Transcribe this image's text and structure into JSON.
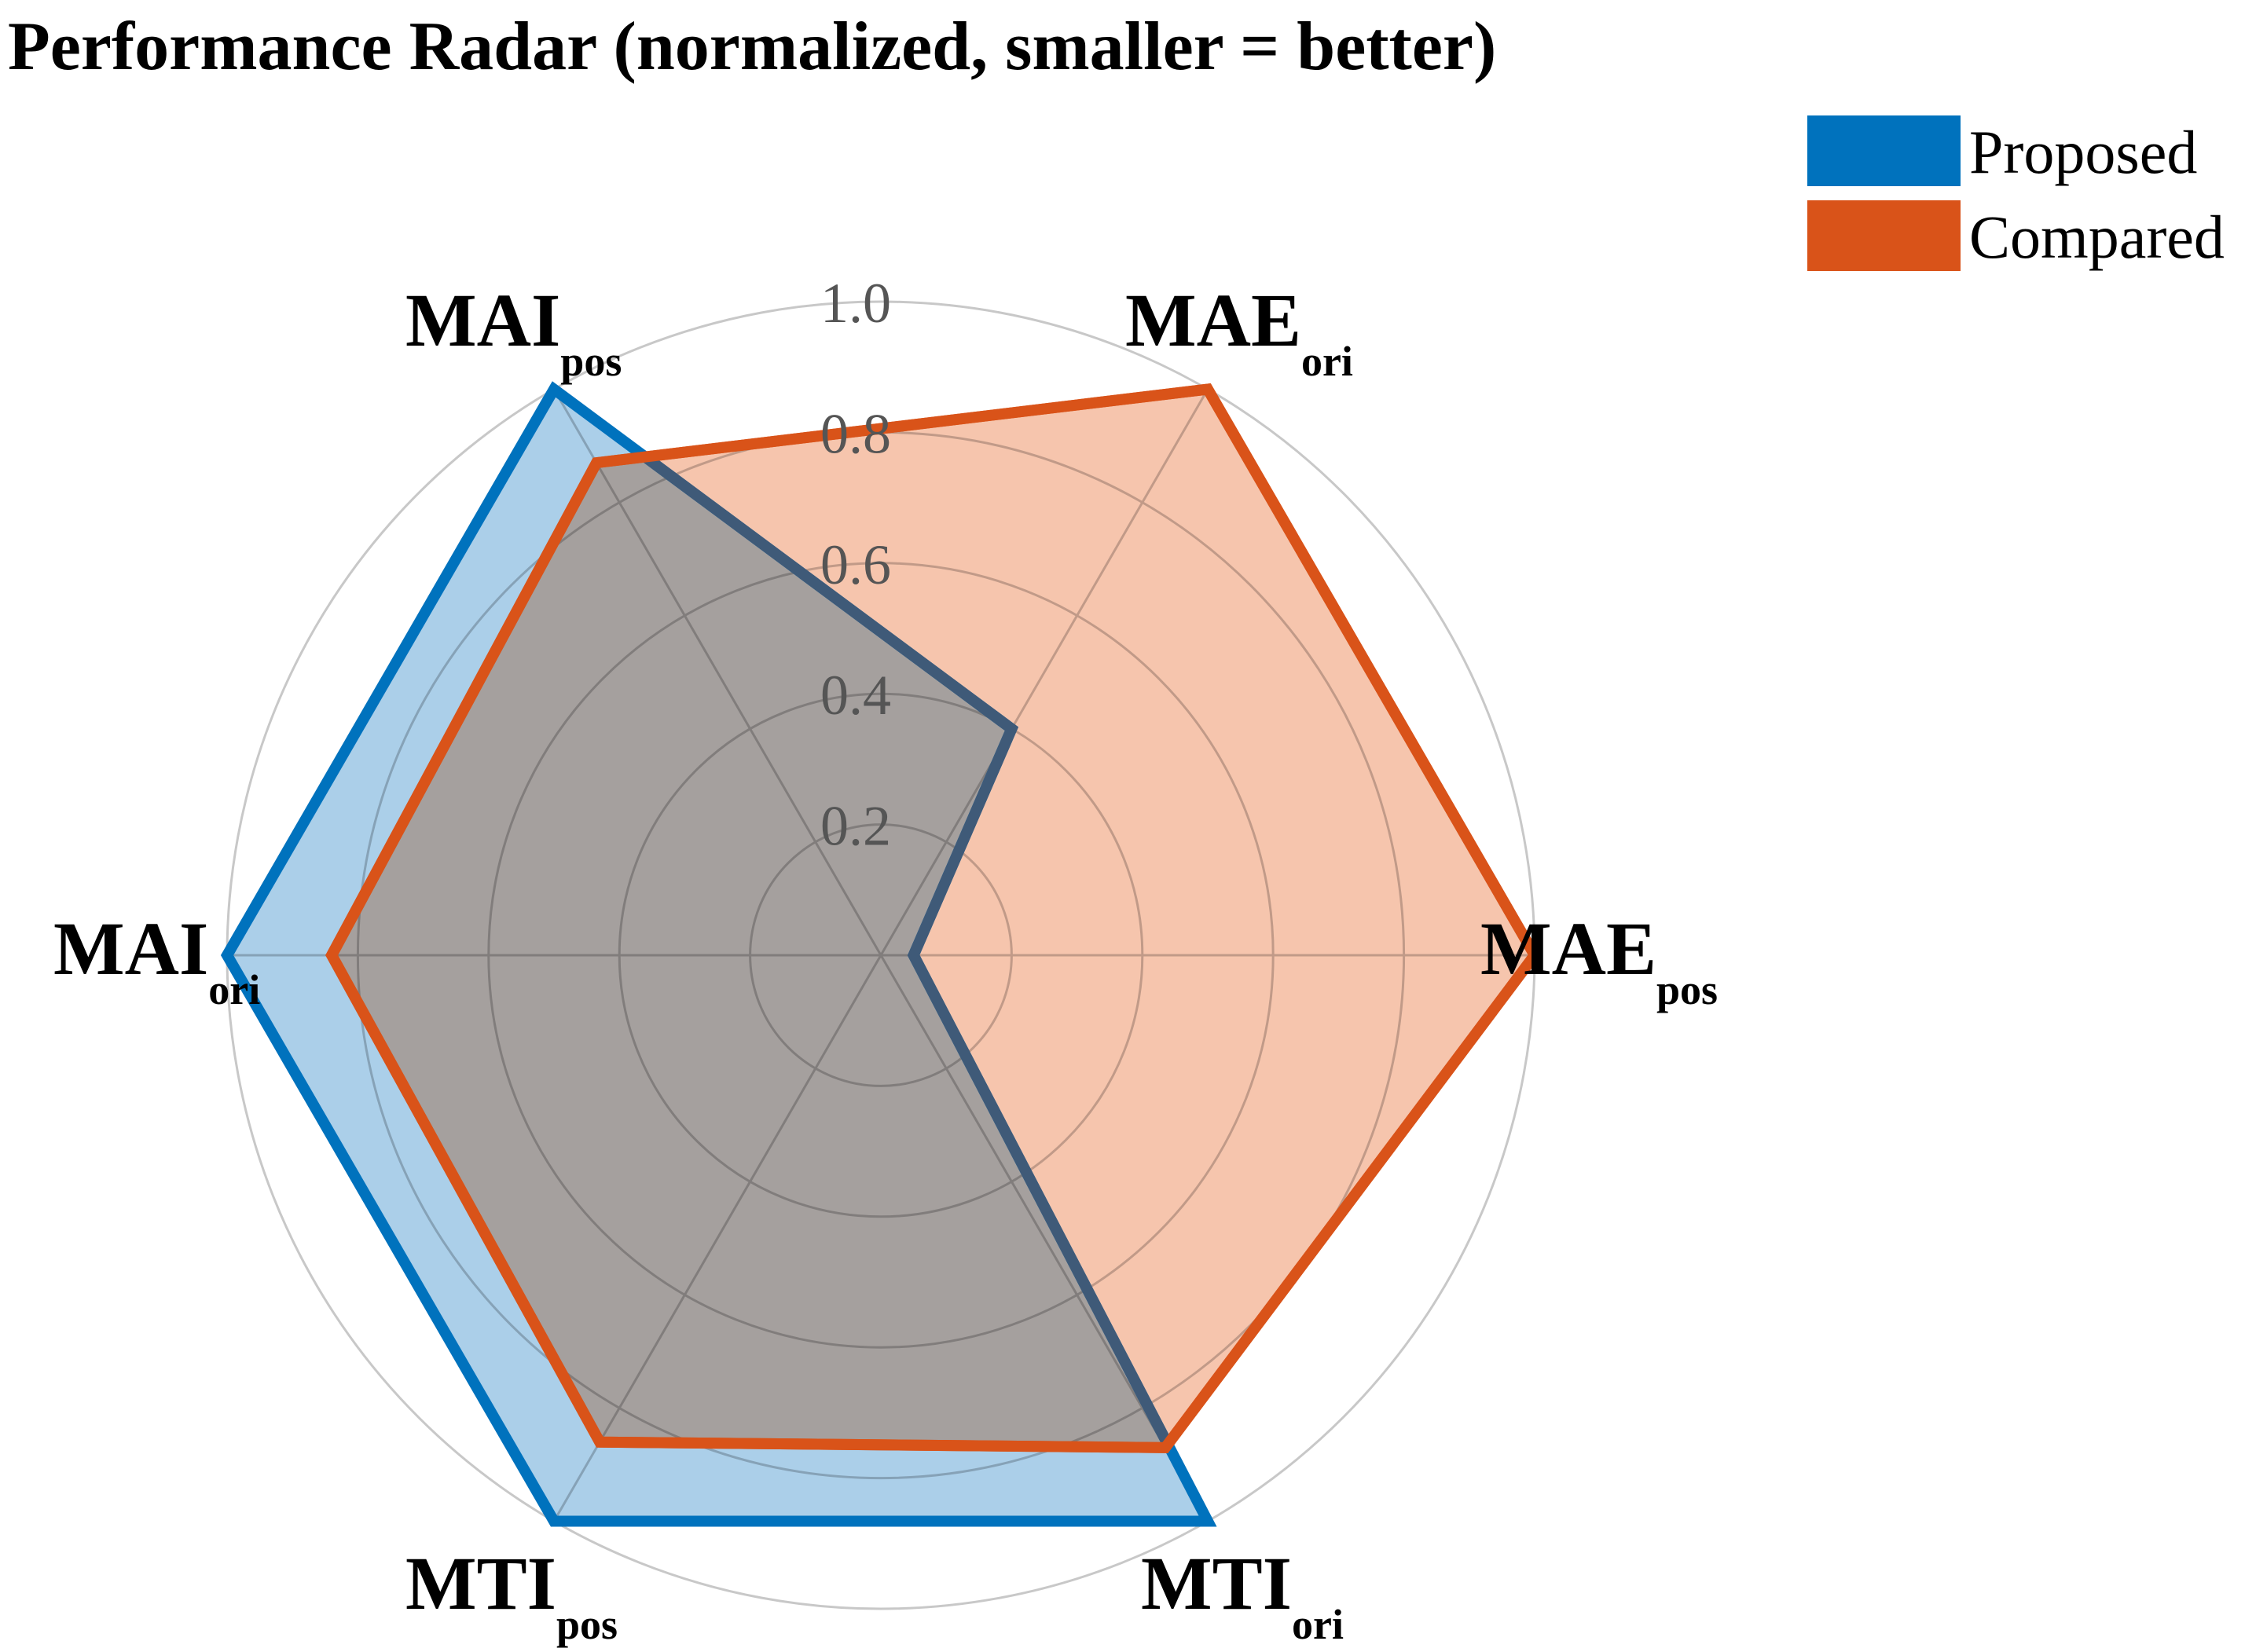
{
  "chart_data": {
    "type": "radar",
    "title": "Performance Radar (normalized, smaller = better)",
    "axes": [
      {
        "name": "MAE",
        "sub": "pos"
      },
      {
        "name": "MAE",
        "sub": "ori"
      },
      {
        "name": "MAI",
        "sub": "pos"
      },
      {
        "name": "MAI",
        "sub": "ori"
      },
      {
        "name": "MTI",
        "sub": "pos"
      },
      {
        "name": "MTI",
        "sub": "ori"
      }
    ],
    "rticks": [
      "0.2",
      "0.4",
      "0.6",
      "0.8",
      "1.0"
    ],
    "rlim": [
      0,
      1.0
    ],
    "series": [
      {
        "name": "Proposed",
        "color": "#0072BD",
        "fill": "#A6CCE8",
        "values": [
          0.05,
          0.4,
          1.0,
          1.0,
          1.0,
          1.0
        ]
      },
      {
        "name": "Compared",
        "color": "#D95319",
        "fill": "#F5C2A9",
        "values": [
          1.0,
          1.0,
          0.87,
          0.84,
          0.86,
          0.87
        ]
      }
    ],
    "legend": "top-right"
  }
}
